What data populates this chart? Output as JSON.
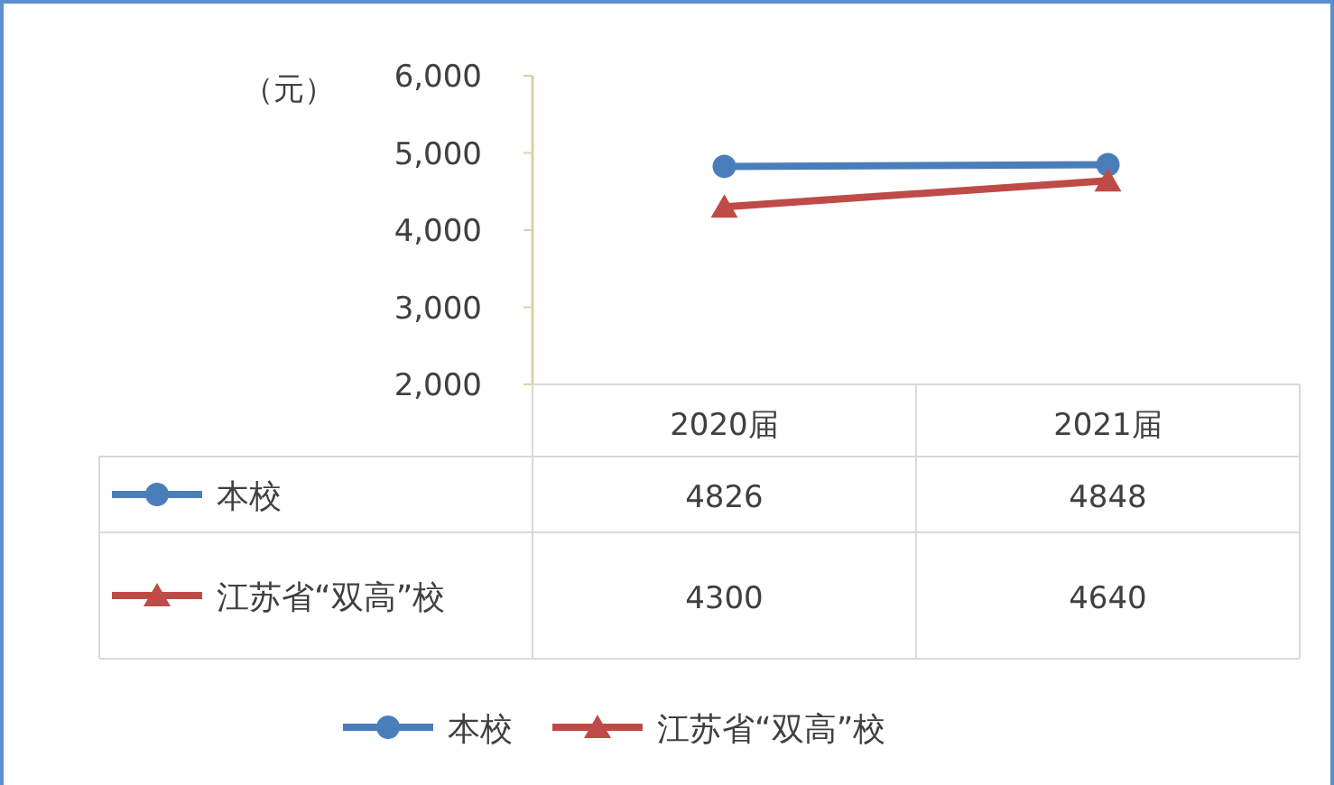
{
  "chart_data": {
    "type": "line",
    "ylabel": "（元）",
    "categories": [
      "2020届",
      "2021届"
    ],
    "series": [
      {
        "name": "本校",
        "color": "#4a7ebb",
        "marker": "circle",
        "values": [
          4826,
          4848
        ]
      },
      {
        "name": "江苏省“双高”校",
        "color": "#be4b48",
        "marker": "triangle",
        "values": [
          4300,
          4640
        ]
      }
    ],
    "ylim": [
      2000,
      6000
    ],
    "yticks": [
      {
        "value": 2000,
        "label": "2,000"
      },
      {
        "value": 3000,
        "label": "3,000"
      },
      {
        "value": 4000,
        "label": "4,000"
      },
      {
        "value": 5000,
        "label": "5,000"
      },
      {
        "value": 6000,
        "label": "6,000"
      }
    ],
    "grid": false,
    "legend": "bottom",
    "data_labels": true
  }
}
